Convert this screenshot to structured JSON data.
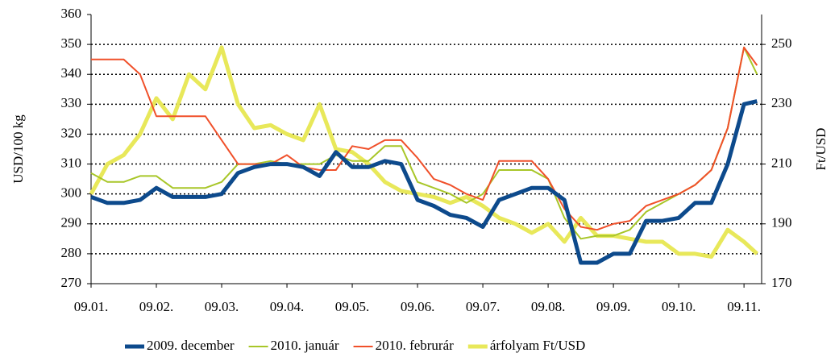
{
  "chart_data": {
    "type": "line",
    "y_label": "USD/100 kg",
    "y2_label": "Ft/USD",
    "x": [
      0,
      0.25,
      0.5,
      0.75,
      1,
      1.25,
      1.5,
      1.75,
      2,
      2.25,
      2.5,
      2.75,
      3,
      3.25,
      3.5,
      3.75,
      4,
      4.25,
      4.5,
      4.75,
      5,
      5.25,
      5.5,
      5.75,
      6,
      6.25,
      6.5,
      6.75,
      7,
      7.25,
      7.5,
      7.75,
      8,
      8.25,
      8.5,
      8.75,
      9,
      9.25,
      9.5,
      9.75,
      10,
      10.2
    ],
    "xlim": [
      0,
      10.27
    ],
    "xticks": [
      {
        "value": 0,
        "label": "09.01."
      },
      {
        "value": 1,
        "label": "09.02."
      },
      {
        "value": 2,
        "label": "09.03."
      },
      {
        "value": 3,
        "label": "09.04."
      },
      {
        "value": 4,
        "label": "09.05."
      },
      {
        "value": 5,
        "label": "09.06."
      },
      {
        "value": 6,
        "label": "09.07."
      },
      {
        "value": 7,
        "label": "09.08."
      },
      {
        "value": 8,
        "label": "09.09."
      },
      {
        "value": 9,
        "label": "09.10."
      },
      {
        "value": 10,
        "label": "09.11."
      }
    ],
    "ylim": [
      270,
      360
    ],
    "yticks": [
      270,
      280,
      290,
      300,
      310,
      320,
      330,
      340,
      350,
      360
    ],
    "y2lim": [
      170,
      260
    ],
    "y2ticks": [
      170,
      190,
      210,
      230,
      250
    ],
    "grid": true,
    "legend": "bottom",
    "series": [
      {
        "name": "2009. december",
        "color": "#0d4a8c",
        "width": 5,
        "values": [
          299,
          297,
          297,
          298,
          302,
          299,
          299,
          299,
          300,
          307,
          309,
          310,
          310,
          309,
          306,
          314,
          309,
          309,
          311,
          310,
          298,
          296,
          293,
          292,
          289,
          298,
          300,
          302,
          302,
          298,
          277,
          277,
          280,
          280,
          291,
          291,
          292,
          297,
          297,
          310,
          330,
          331
        ]
      },
      {
        "name": "2010. január",
        "color": "#a8c628",
        "width": 2,
        "values": [
          307,
          304,
          304,
          306,
          306,
          302,
          302,
          302,
          304,
          310,
          310,
          311,
          310,
          310,
          310,
          313,
          311,
          311,
          316,
          316,
          304,
          302,
          300,
          297,
          300,
          308,
          308,
          308,
          305,
          292,
          285,
          286,
          286,
          288,
          294,
          297,
          300,
          303,
          308,
          322,
          349,
          340
        ]
      },
      {
        "name": "2010. februrár",
        "color": "#f0502a",
        "width": 2,
        "values": [
          345,
          345,
          345,
          340,
          326,
          326,
          326,
          326,
          318,
          310,
          310,
          310,
          313,
          309,
          308,
          308,
          316,
          315,
          318,
          318,
          312,
          305,
          303,
          300,
          298,
          311,
          311,
          311,
          305,
          295,
          289,
          288,
          290,
          291,
          296,
          298,
          300,
          303,
          308,
          322,
          349,
          343
        ]
      },
      {
        "name": "árfolyam Ft/USD",
        "color": "#e8e85a",
        "width": 5,
        "axis": "y2",
        "values": [
          200,
          210,
          213,
          220,
          232,
          225,
          240,
          235,
          249,
          230,
          222,
          223,
          220,
          218,
          230,
          215,
          214,
          210,
          204,
          201,
          200,
          199,
          197,
          199,
          196,
          192,
          190,
          187,
          190,
          184,
          192,
          186,
          186,
          185,
          184,
          184,
          180,
          180,
          179,
          188,
          184,
          180
        ]
      }
    ]
  }
}
